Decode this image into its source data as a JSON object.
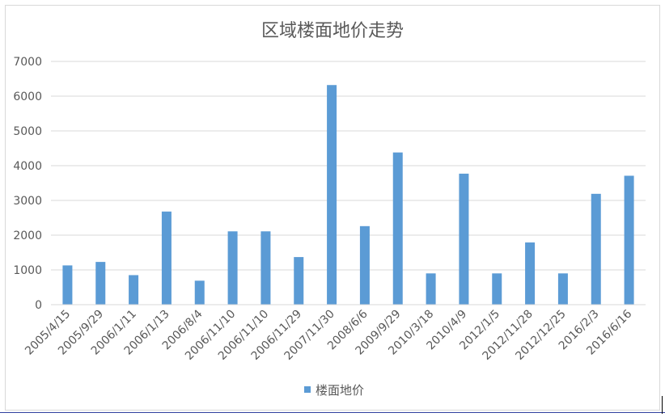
{
  "chart_data": {
    "type": "bar",
    "title": "区域楼面地价走势",
    "categories": [
      "2005/4/15",
      "2005/9/29",
      "2006/1/11",
      "2006/1/13",
      "2006/8/4",
      "2006/11/10",
      "2006/11/10",
      "2006/11/29",
      "2007/11/30",
      "2008/6/6",
      "2009/9/29",
      "2010/3/18",
      "2010/4/9",
      "2012/1/5",
      "2012/11/28",
      "2012/12/25",
      "2016/2/3",
      "2016/6/16"
    ],
    "series": [
      {
        "name": "楼面地价",
        "values": [
          1130,
          1230,
          850,
          2680,
          690,
          2110,
          2110,
          1370,
          6320,
          2260,
          4380,
          900,
          3770,
          900,
          1790,
          900,
          3190,
          3710
        ]
      }
    ],
    "yticks": [
      "0",
      "1000",
      "2000",
      "3000",
      "4000",
      "5000",
      "6000",
      "7000"
    ],
    "ylim": [
      0,
      7000
    ],
    "grid": true,
    "legend": "bottom",
    "colors": {
      "bar": "#5b9bd5",
      "grid": "#d9d9d9",
      "text": "#595959"
    }
  }
}
